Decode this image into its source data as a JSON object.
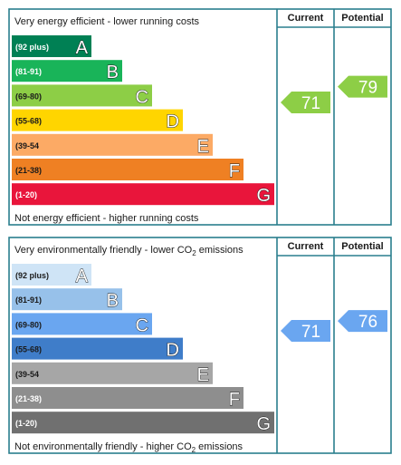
{
  "chart_data": [
    {
      "type": "bar",
      "title": "Very energy efficient - lower running costs",
      "footer": "Not energy efficient - higher running costs",
      "columns": [
        "Current",
        "Potential"
      ],
      "categories": [
        "A",
        "B",
        "C",
        "D",
        "E",
        "F",
        "G"
      ],
      "ranges": [
        "(92 plus)",
        "(81-91)",
        "(69-80)",
        "(55-68)",
        "(39-54",
        "(21-38)",
        "(1-20)"
      ],
      "colors": [
        "#008054",
        "#19b459",
        "#8dce46",
        "#ffd500",
        "#fcaa65",
        "#ef8023",
        "#e9153b"
      ],
      "range_text_colors": [
        "#ffffff",
        "#ffffff",
        "#1a1a1a",
        "#1a1a1a",
        "#1a1a1a",
        "#1a1a1a",
        "#ffffff"
      ],
      "current": {
        "value": 71,
        "band": "C",
        "color": "#8dce46"
      },
      "potential": {
        "value": 79,
        "band": "C",
        "color": "#8dce46"
      }
    },
    {
      "type": "bar",
      "title_prefix": "Very environmentally friendly - lower CO",
      "title_sub": "2",
      "title_suffix": " emissions",
      "footer_prefix": "Not environmentally friendly - higher CO",
      "footer_sub": "2",
      "footer_suffix": " emissions",
      "columns": [
        "Current",
        "Potential"
      ],
      "categories": [
        "A",
        "B",
        "C",
        "D",
        "E",
        "F",
        "G"
      ],
      "ranges": [
        "(92 plus)",
        "(81-91)",
        "(69-80)",
        "(55-68)",
        "(39-54",
        "(21-38)",
        "(1-20)"
      ],
      "colors": [
        "#cfe4f6",
        "#97c1ea",
        "#6aa6f0",
        "#3f7dc9",
        "#a6a6a6",
        "#8e8e8e",
        "#707070"
      ],
      "range_text_colors": [
        "#1a1a1a",
        "#1a1a1a",
        "#1a1a1a",
        "#1a1a1a",
        "#1a1a1a",
        "#ffffff",
        "#ffffff"
      ],
      "current": {
        "value": 71,
        "band": "C",
        "color": "#6aa6f0"
      },
      "potential": {
        "value": 76,
        "band": "C",
        "color": "#6aa6f0"
      }
    }
  ]
}
